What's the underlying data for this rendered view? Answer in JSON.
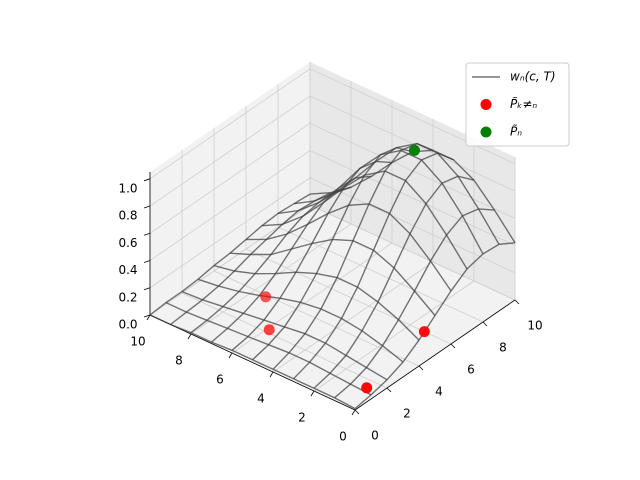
{
  "chart_data": {
    "type": "wireframe3d",
    "x": [
      0,
      1,
      2,
      3,
      4,
      5,
      6,
      7,
      8,
      9,
      10
    ],
    "y": [
      0,
      1,
      2,
      3,
      4,
      5,
      6,
      7,
      8,
      9,
      10
    ],
    "xlim": [
      0,
      10
    ],
    "ylim": [
      0,
      10
    ],
    "zlim": [
      0,
      1.05
    ],
    "xticks": [
      0,
      2,
      4,
      6,
      8,
      10
    ],
    "yticks": [
      0,
      2,
      4,
      6,
      8,
      10
    ],
    "zticks": [
      {
        "value": 0,
        "label": "0.0"
      },
      0.2,
      0.4,
      0.6,
      0.8,
      {
        "value": 1,
        "label": "1.0"
      }
    ],
    "grid": true,
    "legend": "upper right",
    "series": [
      {
        "name": "wₙ(c, T)",
        "color": "#3a3a3a",
        "type": "wireframe",
        "z": [
          [
            0.01,
            0.03,
            0.06,
            0.11,
            0.19,
            0.29,
            0.39,
            0.47,
            0.5,
            0.49,
            0.42
          ],
          [
            0.02,
            0.04,
            0.08,
            0.16,
            0.27,
            0.4,
            0.54,
            0.65,
            0.71,
            0.68,
            0.59
          ],
          [
            0.02,
            0.05,
            0.1,
            0.2,
            0.33,
            0.5,
            0.67,
            0.81,
            0.88,
            0.85,
            0.74
          ],
          [
            0.02,
            0.06,
            0.12,
            0.22,
            0.37,
            0.56,
            0.75,
            0.91,
            0.98,
            0.95,
            0.82
          ],
          [
            0.02,
            0.06,
            0.12,
            0.22,
            0.37,
            0.56,
            0.75,
            0.91,
            0.98,
            0.95,
            0.82
          ],
          [
            0.02,
            0.05,
            0.1,
            0.2,
            0.33,
            0.5,
            0.67,
            0.81,
            0.88,
            0.85,
            0.74
          ],
          [
            0.02,
            0.04,
            0.08,
            0.16,
            0.27,
            0.4,
            0.54,
            0.65,
            0.71,
            0.68,
            0.59
          ],
          [
            0.01,
            0.03,
            0.06,
            0.11,
            0.19,
            0.29,
            0.39,
            0.47,
            0.5,
            0.49,
            0.42
          ],
          [
            0.01,
            0.02,
            0.04,
            0.07,
            0.12,
            0.18,
            0.25,
            0.3,
            0.32,
            0.31,
            0.27
          ],
          [
            0.0,
            0.01,
            0.02,
            0.04,
            0.07,
            0.11,
            0.14,
            0.17,
            0.19,
            0.18,
            0.16
          ],
          [
            0.0,
            0.01,
            0.01,
            0.02,
            0.04,
            0.05,
            0.07,
            0.09,
            0.1,
            0.09,
            0.08
          ]
        ]
      },
      {
        "name": "P̃ₖ≠ₙ",
        "color": "red",
        "type": "scatter",
        "x": [
          0.6,
          1.3,
          5.9,
          7.4
        ],
        "y": [
          1.5,
          6.0,
          2.2,
          3.9
        ],
        "z": [
          0,
          0,
          0,
          0
        ]
      },
      {
        "name": "P̃ₙ",
        "color": "green",
        "type": "scatter",
        "x": [
          3.5
        ],
        "y": [
          8.2
        ],
        "z": [
          1
        ]
      }
    ]
  }
}
